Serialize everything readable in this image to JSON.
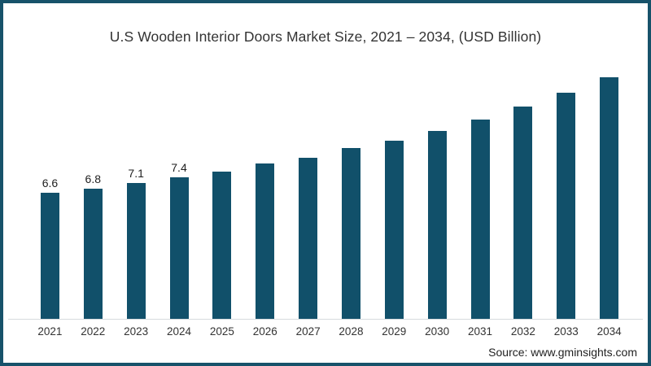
{
  "frame": {
    "border_color": "#17526a",
    "background_color": "#ffffff"
  },
  "title": "U.S Wooden Interior Doors Market Size, 2021 – 2034, (USD Billion)",
  "source_note": "Source: www.gminsights.com",
  "chart_data": {
    "type": "bar",
    "title": "U.S Wooden Interior Doors Market Size, 2021 – 2034, (USD Billion)",
    "xlabel": "",
    "ylabel": "",
    "unit": "USD Billion",
    "categories": [
      "2021",
      "2022",
      "2023",
      "2024",
      "2025",
      "2026",
      "2027",
      "2028",
      "2029",
      "2030",
      "2031",
      "2032",
      "2033",
      "2034"
    ],
    "values": [
      6.6,
      6.8,
      7.1,
      7.4,
      7.7,
      8.1,
      8.4,
      8.9,
      9.3,
      9.8,
      10.4,
      11.1,
      11.8,
      12.6
    ],
    "data_labels": [
      "6.6",
      "6.8",
      "7.1",
      "7.4",
      "",
      "",
      "",
      "",
      "",
      "",
      "",
      "",
      "",
      ""
    ],
    "ylim": [
      0,
      13.7
    ],
    "grid": false,
    "legend": false,
    "bar_color": "#11506a",
    "axis_line_color": "#d6dbde",
    "data_label_color": "#1f1f1f",
    "tick_label_color": "#333333"
  }
}
